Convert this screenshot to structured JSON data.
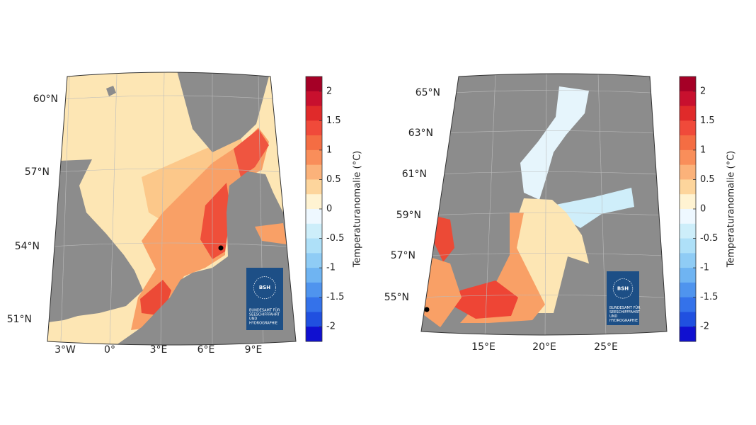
{
  "maps": [
    {
      "lat_labels": [
        "60°N",
        "57°N",
        "54°N",
        "51°N"
      ],
      "lon_labels": [
        "3°W",
        "0°",
        "3°E",
        "6°E",
        "9°E"
      ],
      "colorbar": {
        "label": "Temperaturanomalie (°C)",
        "range": [
          -2.25,
          2.25
        ],
        "ticks": [
          2,
          1.5,
          1,
          0.5,
          0,
          -0.5,
          -1,
          -1.5,
          -2
        ],
        "colors": [
          "#a50026",
          "#c8102e",
          "#e02a2a",
          "#f04a3a",
          "#f46d43",
          "#f98e5a",
          "#fbb27a",
          "#fdd59c",
          "#fff3d2",
          "#eef8ff",
          "#cdeefa",
          "#aee0f8",
          "#8fccf5",
          "#6fb4f2",
          "#4f94ee",
          "#3472ea",
          "#2050e0",
          "#1010d0"
        ]
      },
      "logo": {
        "mark": "BSH",
        "text": [
          "BUNDESAMT FÜR",
          "SEESCHIFFFAHRT",
          "UND",
          "HYDROGRAPHIE"
        ]
      }
    },
    {
      "lat_labels": [
        "65°N",
        "63°N",
        "61°N",
        "59°N",
        "57°N",
        "55°N"
      ],
      "lon_labels": [
        "15°E",
        "20°E",
        "25°E"
      ],
      "colorbar": {
        "label": "Temperaturanomalie (°C)",
        "range": [
          -2.25,
          2.25
        ],
        "ticks": [
          2,
          1.5,
          1,
          0.5,
          0,
          -0.5,
          -1,
          -1.5,
          -2
        ],
        "colors": [
          "#a50026",
          "#c8102e",
          "#e02a2a",
          "#f04a3a",
          "#f46d43",
          "#f98e5a",
          "#fbb27a",
          "#fdd59c",
          "#fff3d2",
          "#eef8ff",
          "#cdeefa",
          "#aee0f8",
          "#8fccf5",
          "#6fb4f2",
          "#4f94ee",
          "#3472ea",
          "#2050e0",
          "#1010d0"
        ]
      },
      "logo": {
        "mark": "BSH",
        "text": [
          "BUNDESAMT FÜR",
          "SEESCHIFFFAHRT",
          "UND",
          "HYDROGRAPHIE"
        ]
      }
    }
  ]
}
